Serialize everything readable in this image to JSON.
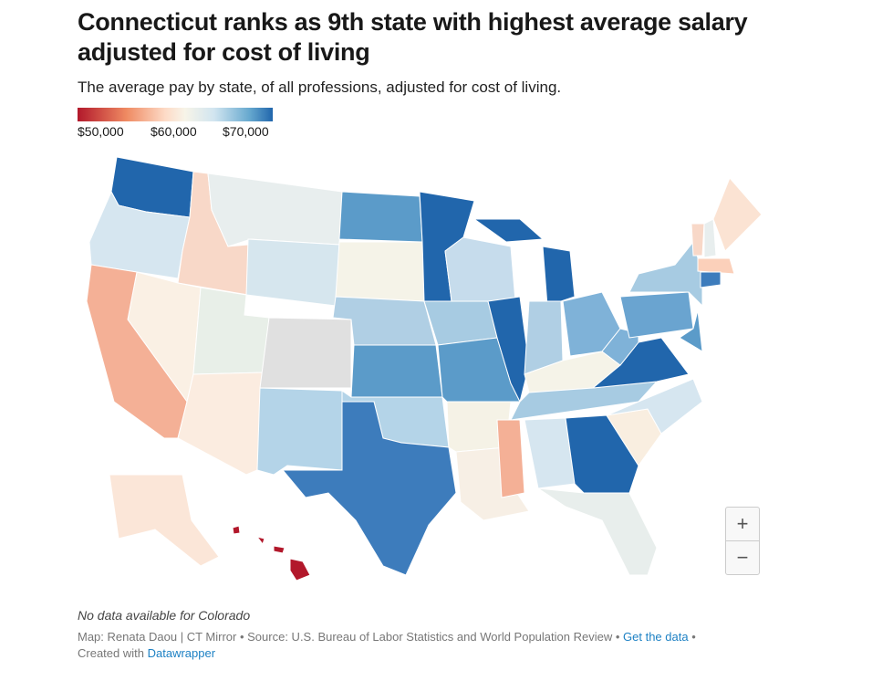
{
  "header": {
    "title": "Connecticut ranks as 9th state with highest average salary adjusted for cost of living",
    "subtitle": "The average pay by state, of all professions, adjusted for cost of living."
  },
  "legend": {
    "labels": [
      "$50,000",
      "$60,000",
      "$70,000"
    ],
    "colors": [
      "#b2182b",
      "#f7f4e8",
      "#2166ac"
    ]
  },
  "map": {
    "no_data_color": "#e0e0e0",
    "fills": {
      "WA": "#2166ac",
      "OR": "#d6e6f0",
      "ID": "#f8d8c8",
      "MT": "#e8eeee",
      "WY": "#d6e6ee",
      "NV": "#faf0e4",
      "CA": "#f4b096",
      "UT": "#e8efe8",
      "AZ": "#fbece0",
      "CO": "#e0e0e0",
      "NM": "#b4d4e8",
      "ND": "#5b9bc9",
      "SD": "#f5f3e8",
      "NE": "#b0cfe4",
      "KS": "#5b9bc9",
      "OK": "#b4d4e8",
      "TX": "#3d7cbc",
      "MN": "#2166ac",
      "IA": "#a7cbe2",
      "MO": "#5b9bc9",
      "AR": "#f5f2e6",
      "LA": "#f7efe5",
      "WI": "#c6dcec",
      "IL": "#2166ac",
      "MI": "#2166ac",
      "IN": "#b0cfe4",
      "OH": "#7fb2d8",
      "KY": "#f5f3e8",
      "TN": "#a7cbe2",
      "MS": "#f4b096",
      "AL": "#d6e6f0",
      "GA": "#2166ac",
      "FL": "#e8eeec",
      "SC": "#f9eee0",
      "NC": "#d6e6f0",
      "VA": "#2166ac",
      "WV": "#7fb2d8",
      "PA": "#6aa4d0",
      "NY": "#a7cbe2",
      "NJ": "#5b9bc9",
      "VT": "#f8d8c8",
      "NH": "#e8eeee",
      "ME": "#fbe3d3",
      "MA": "#fbd0ba",
      "CT": "#3d7cbc",
      "AK": "#fbe6d8",
      "HI": "#b2182b"
    },
    "zoom_in": "+",
    "zoom_out": "−"
  },
  "notes": {
    "no_data": "No data available for Colorado",
    "credit": "Map: Renata Daou | CT Mirror • Source: U.S. Bureau of Labor Statistics and World Population Review •",
    "get_data": "Get the data",
    "sep": "•",
    "created_with": "Created with",
    "datawrapper": "Datawrapper"
  }
}
